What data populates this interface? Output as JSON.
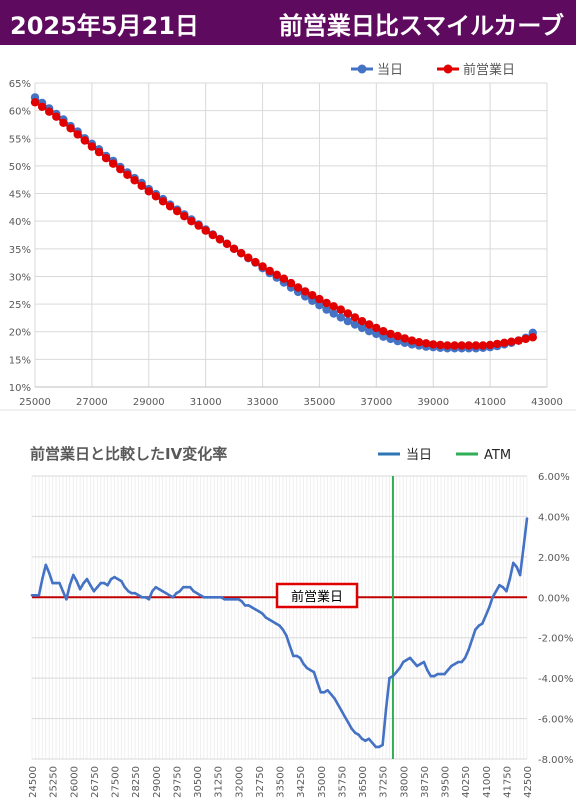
{
  "header": {
    "date": "2025年5月21日",
    "title": "前営業日比スマイルカーブ"
  },
  "colors": {
    "banner": "#5e0a5e",
    "today": "#4472c4",
    "previous": "#e00000",
    "atm": "#2fae55",
    "zero_line": "#c00000"
  },
  "chart_data": [
    {
      "type": "line",
      "title": "",
      "xlabel": "",
      "ylabel": "",
      "xlim": [
        25000,
        43000
      ],
      "ylim": [
        10,
        65
      ],
      "x_ticks": [
        "25000",
        "27000",
        "29000",
        "31000",
        "33000",
        "35000",
        "37000",
        "39000",
        "41000",
        "43000"
      ],
      "y_ticks": [
        "65%",
        "60%",
        "55%",
        "50%",
        "45%",
        "40%",
        "35%",
        "30%",
        "25%",
        "20%",
        "15%",
        "10%"
      ],
      "legend": {
        "position": "top-right",
        "labels": [
          "当日",
          "前営業日"
        ]
      },
      "grid": true,
      "series": [
        {
          "name": "当日",
          "color": "#4472c4",
          "x": [
            25000,
            25250,
            25500,
            25750,
            26000,
            26250,
            26500,
            26750,
            27000,
            27250,
            27500,
            27750,
            28000,
            28250,
            28500,
            28750,
            29000,
            29250,
            29500,
            29750,
            30000,
            30250,
            30500,
            30750,
            31000,
            31250,
            31500,
            31750,
            32000,
            32250,
            32500,
            32750,
            33000,
            33250,
            33500,
            33750,
            34000,
            34250,
            34500,
            34750,
            35000,
            35250,
            35500,
            35750,
            36000,
            36250,
            36500,
            36750,
            37000,
            37250,
            37500,
            37750,
            38000,
            38250,
            38500,
            38750,
            39000,
            39250,
            39500,
            39750,
            40000,
            40250,
            40500,
            40750,
            41000,
            41250,
            41500,
            41750,
            42000,
            42250,
            42500
          ],
          "values": [
            62.4,
            61.4,
            60.4,
            59.4,
            58.4,
            57.2,
            56.2,
            55.0,
            54.0,
            53.0,
            51.8,
            50.9,
            49.8,
            48.8,
            47.8,
            46.9,
            45.8,
            44.9,
            44.0,
            43.0,
            42.1,
            41.2,
            40.3,
            39.4,
            38.5,
            37.6,
            36.8,
            35.9,
            35.0,
            34.2,
            33.3,
            32.5,
            31.5,
            30.6,
            29.8,
            28.9,
            28.0,
            27.2,
            26.4,
            25.6,
            24.8,
            24.0,
            23.3,
            22.6,
            21.9,
            21.3,
            20.7,
            20.1,
            19.6,
            19.1,
            18.7,
            18.3,
            18.0,
            17.7,
            17.5,
            17.3,
            17.2,
            17.1,
            17.0,
            17.0,
            17.0,
            17.0,
            17.0,
            17.1,
            17.2,
            17.4,
            17.7,
            18.0,
            18.4,
            18.9,
            19.8
          ]
        },
        {
          "name": "前営業日",
          "color": "#e00000",
          "x": [
            25000,
            25250,
            25500,
            25750,
            26000,
            26250,
            26500,
            26750,
            27000,
            27250,
            27500,
            27750,
            28000,
            28250,
            28500,
            28750,
            29000,
            29250,
            29500,
            29750,
            30000,
            30250,
            30500,
            30750,
            31000,
            31250,
            31500,
            31750,
            32000,
            32250,
            32500,
            32750,
            33000,
            33250,
            33500,
            33750,
            34000,
            34250,
            34500,
            34750,
            35000,
            35250,
            35500,
            35750,
            36000,
            36250,
            36500,
            36750,
            37000,
            37250,
            37500,
            37750,
            38000,
            38250,
            38500,
            38750,
            39000,
            39250,
            39500,
            39750,
            40000,
            40250,
            40500,
            40750,
            41000,
            41250,
            41500,
            41750,
            42000,
            42250,
            42500
          ],
          "values": [
            61.5,
            60.7,
            59.8,
            58.9,
            57.8,
            56.8,
            55.7,
            54.6,
            53.5,
            52.5,
            51.4,
            50.4,
            49.4,
            48.4,
            47.4,
            46.4,
            45.4,
            44.5,
            43.6,
            42.7,
            41.8,
            40.9,
            40.0,
            39.2,
            38.3,
            37.5,
            36.7,
            35.9,
            35.0,
            34.2,
            33.4,
            32.6,
            31.8,
            31.0,
            30.3,
            29.6,
            28.8,
            28.0,
            27.3,
            26.6,
            25.9,
            25.2,
            24.6,
            24.0,
            23.3,
            22.6,
            21.9,
            21.3,
            20.7,
            20.1,
            19.6,
            19.2,
            18.8,
            18.4,
            18.1,
            17.9,
            17.7,
            17.6,
            17.5,
            17.5,
            17.5,
            17.5,
            17.5,
            17.5,
            17.6,
            17.8,
            18.0,
            18.2,
            18.4,
            18.7,
            19.0
          ]
        }
      ]
    },
    {
      "type": "line",
      "title": "前営業日と比較したIV変化率",
      "xlabel": "",
      "ylabel": "",
      "ylim": [
        -8,
        6
      ],
      "y_ticks": [
        "6.00%",
        "4.00%",
        "2.00%",
        "0.00%",
        "-2.00%",
        "-4.00%",
        "-6.00%",
        "-8.00%"
      ],
      "x_ticks": [
        "24500",
        "25250",
        "26000",
        "26750",
        "27500",
        "28250",
        "29000",
        "29750",
        "30500",
        "31250",
        "32000",
        "32750",
        "33500",
        "34250",
        "35000",
        "35750",
        "36500",
        "37250",
        "38000",
        "38750",
        "39500",
        "40250",
        "41000",
        "41750",
        "42500"
      ],
      "legend": {
        "position": "top-right",
        "labels": [
          "当日",
          "ATM"
        ]
      },
      "atm_x": 37625,
      "zero_label": "前営業日",
      "grid": true,
      "series": [
        {
          "name": "当日",
          "color": "#4472c4",
          "x": [
            24500,
            24625,
            24750,
            24875,
            25000,
            25125,
            25250,
            25375,
            25500,
            25625,
            25750,
            25875,
            26000,
            26125,
            26250,
            26375,
            26500,
            26625,
            26750,
            26875,
            27000,
            27125,
            27250,
            27375,
            27500,
            27625,
            27750,
            27875,
            28000,
            28125,
            28250,
            28375,
            28500,
            28625,
            28750,
            28875,
            29000,
            29125,
            29250,
            29375,
            29500,
            29625,
            29750,
            29875,
            30000,
            30125,
            30250,
            30375,
            30500,
            30625,
            30750,
            30875,
            31000,
            31125,
            31250,
            31375,
            31500,
            31625,
            31750,
            31875,
            32000,
            32125,
            32250,
            32375,
            32500,
            32625,
            32750,
            32875,
            33000,
            33125,
            33250,
            33375,
            33500,
            33625,
            33750,
            33875,
            34000,
            34125,
            34250,
            34375,
            34500,
            34625,
            34750,
            34875,
            35000,
            35125,
            35250,
            35375,
            35500,
            35625,
            35750,
            35875,
            36000,
            36125,
            36250,
            36375,
            36500,
            36625,
            36750,
            36875,
            37000,
            37125,
            37250,
            37375,
            37500,
            37625,
            37750,
            37875,
            38000,
            38125,
            38250,
            38375,
            38500,
            38625,
            38750,
            38875,
            39000,
            39125,
            39250,
            39375,
            39500,
            39625,
            39750,
            39875,
            40000,
            40125,
            40250,
            40375,
            40500,
            40625,
            40750,
            40875,
            41000,
            41125,
            41250,
            41375,
            41500,
            41625,
            41750,
            41875,
            42000,
            42125,
            42250,
            42375,
            42500
          ],
          "values": [
            0.1,
            0.1,
            0.1,
            0.9,
            1.6,
            1.2,
            0.7,
            0.7,
            0.7,
            0.3,
            -0.1,
            0.6,
            1.1,
            0.8,
            0.4,
            0.7,
            0.9,
            0.6,
            0.3,
            0.5,
            0.7,
            0.7,
            0.6,
            0.9,
            1.0,
            0.9,
            0.8,
            0.5,
            0.3,
            0.2,
            0.2,
            0.1,
            0.0,
            0.0,
            -0.1,
            0.3,
            0.5,
            0.4,
            0.3,
            0.2,
            0.1,
            0.0,
            0.2,
            0.3,
            0.5,
            0.5,
            0.5,
            0.3,
            0.2,
            0.1,
            0.0,
            0.0,
            0.0,
            0.0,
            0.0,
            0.0,
            -0.1,
            -0.1,
            -0.1,
            -0.1,
            -0.1,
            -0.2,
            -0.4,
            -0.4,
            -0.5,
            -0.6,
            -0.7,
            -0.8,
            -1.0,
            -1.1,
            -1.2,
            -1.3,
            -1.4,
            -1.6,
            -1.9,
            -2.4,
            -2.9,
            -2.9,
            -3.0,
            -3.3,
            -3.5,
            -3.6,
            -3.7,
            -4.2,
            -4.7,
            -4.7,
            -4.6,
            -4.8,
            -5.0,
            -5.3,
            -5.6,
            -5.9,
            -6.2,
            -6.5,
            -6.7,
            -6.8,
            -7.0,
            -7.1,
            -7.0,
            -7.2,
            -7.4,
            -7.4,
            -7.3,
            -5.5,
            -4.0,
            -3.9,
            -3.7,
            -3.5,
            -3.2,
            -3.1,
            -3.0,
            -3.2,
            -3.4,
            -3.3,
            -3.2,
            -3.6,
            -3.9,
            -3.9,
            -3.8,
            -3.8,
            -3.8,
            -3.6,
            -3.4,
            -3.3,
            -3.2,
            -3.2,
            -3.0,
            -2.6,
            -2.1,
            -1.6,
            -1.4,
            -1.3,
            -0.9,
            -0.5,
            0.0,
            0.3,
            0.6,
            0.5,
            0.3,
            0.9,
            1.7,
            1.5,
            1.1,
            2.5,
            3.9
          ]
        }
      ]
    }
  ]
}
